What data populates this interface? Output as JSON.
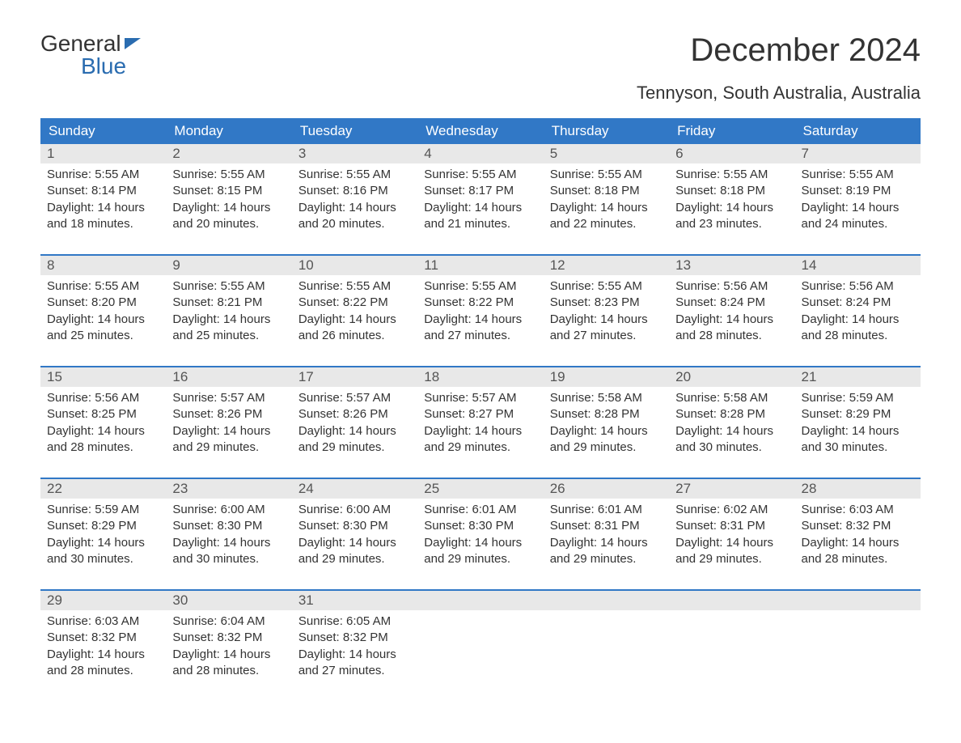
{
  "brand": {
    "line1": "General",
    "line2": "Blue"
  },
  "title": "December 2024",
  "subtitle": "Tennyson, South Australia, Australia",
  "colors": {
    "header_bg": "#3178c6",
    "header_text": "#ffffff",
    "daynum_bg": "#e8e8e8",
    "week_border": "#3178c6",
    "body_text": "#333333",
    "page_bg": "#ffffff"
  },
  "day_labels": [
    "Sunday",
    "Monday",
    "Tuesday",
    "Wednesday",
    "Thursday",
    "Friday",
    "Saturday"
  ],
  "label_prefixes": {
    "sunrise": "Sunrise: ",
    "sunset": "Sunset: ",
    "daylight1": "Daylight: ",
    "daylight2_prefix": "and ",
    "daylight2_suffix": " minutes."
  },
  "weeks": [
    [
      {
        "n": "1",
        "sunrise": "5:55 AM",
        "sunset": "8:14 PM",
        "dl_h": "14 hours",
        "dl_m": "18"
      },
      {
        "n": "2",
        "sunrise": "5:55 AM",
        "sunset": "8:15 PM",
        "dl_h": "14 hours",
        "dl_m": "20"
      },
      {
        "n": "3",
        "sunrise": "5:55 AM",
        "sunset": "8:16 PM",
        "dl_h": "14 hours",
        "dl_m": "20"
      },
      {
        "n": "4",
        "sunrise": "5:55 AM",
        "sunset": "8:17 PM",
        "dl_h": "14 hours",
        "dl_m": "21"
      },
      {
        "n": "5",
        "sunrise": "5:55 AM",
        "sunset": "8:18 PM",
        "dl_h": "14 hours",
        "dl_m": "22"
      },
      {
        "n": "6",
        "sunrise": "5:55 AM",
        "sunset": "8:18 PM",
        "dl_h": "14 hours",
        "dl_m": "23"
      },
      {
        "n": "7",
        "sunrise": "5:55 AM",
        "sunset": "8:19 PM",
        "dl_h": "14 hours",
        "dl_m": "24"
      }
    ],
    [
      {
        "n": "8",
        "sunrise": "5:55 AM",
        "sunset": "8:20 PM",
        "dl_h": "14 hours",
        "dl_m": "25"
      },
      {
        "n": "9",
        "sunrise": "5:55 AM",
        "sunset": "8:21 PM",
        "dl_h": "14 hours",
        "dl_m": "25"
      },
      {
        "n": "10",
        "sunrise": "5:55 AM",
        "sunset": "8:22 PM",
        "dl_h": "14 hours",
        "dl_m": "26"
      },
      {
        "n": "11",
        "sunrise": "5:55 AM",
        "sunset": "8:22 PM",
        "dl_h": "14 hours",
        "dl_m": "27"
      },
      {
        "n": "12",
        "sunrise": "5:55 AM",
        "sunset": "8:23 PM",
        "dl_h": "14 hours",
        "dl_m": "27"
      },
      {
        "n": "13",
        "sunrise": "5:56 AM",
        "sunset": "8:24 PM",
        "dl_h": "14 hours",
        "dl_m": "28"
      },
      {
        "n": "14",
        "sunrise": "5:56 AM",
        "sunset": "8:24 PM",
        "dl_h": "14 hours",
        "dl_m": "28"
      }
    ],
    [
      {
        "n": "15",
        "sunrise": "5:56 AM",
        "sunset": "8:25 PM",
        "dl_h": "14 hours",
        "dl_m": "28"
      },
      {
        "n": "16",
        "sunrise": "5:57 AM",
        "sunset": "8:26 PM",
        "dl_h": "14 hours",
        "dl_m": "29"
      },
      {
        "n": "17",
        "sunrise": "5:57 AM",
        "sunset": "8:26 PM",
        "dl_h": "14 hours",
        "dl_m": "29"
      },
      {
        "n": "18",
        "sunrise": "5:57 AM",
        "sunset": "8:27 PM",
        "dl_h": "14 hours",
        "dl_m": "29"
      },
      {
        "n": "19",
        "sunrise": "5:58 AM",
        "sunset": "8:28 PM",
        "dl_h": "14 hours",
        "dl_m": "29"
      },
      {
        "n": "20",
        "sunrise": "5:58 AM",
        "sunset": "8:28 PM",
        "dl_h": "14 hours",
        "dl_m": "30"
      },
      {
        "n": "21",
        "sunrise": "5:59 AM",
        "sunset": "8:29 PM",
        "dl_h": "14 hours",
        "dl_m": "30"
      }
    ],
    [
      {
        "n": "22",
        "sunrise": "5:59 AM",
        "sunset": "8:29 PM",
        "dl_h": "14 hours",
        "dl_m": "30"
      },
      {
        "n": "23",
        "sunrise": "6:00 AM",
        "sunset": "8:30 PM",
        "dl_h": "14 hours",
        "dl_m": "30"
      },
      {
        "n": "24",
        "sunrise": "6:00 AM",
        "sunset": "8:30 PM",
        "dl_h": "14 hours",
        "dl_m": "29"
      },
      {
        "n": "25",
        "sunrise": "6:01 AM",
        "sunset": "8:30 PM",
        "dl_h": "14 hours",
        "dl_m": "29"
      },
      {
        "n": "26",
        "sunrise": "6:01 AM",
        "sunset": "8:31 PM",
        "dl_h": "14 hours",
        "dl_m": "29"
      },
      {
        "n": "27",
        "sunrise": "6:02 AM",
        "sunset": "8:31 PM",
        "dl_h": "14 hours",
        "dl_m": "29"
      },
      {
        "n": "28",
        "sunrise": "6:03 AM",
        "sunset": "8:32 PM",
        "dl_h": "14 hours",
        "dl_m": "28"
      }
    ],
    [
      {
        "n": "29",
        "sunrise": "6:03 AM",
        "sunset": "8:32 PM",
        "dl_h": "14 hours",
        "dl_m": "28"
      },
      {
        "n": "30",
        "sunrise": "6:04 AM",
        "sunset": "8:32 PM",
        "dl_h": "14 hours",
        "dl_m": "28"
      },
      {
        "n": "31",
        "sunrise": "6:05 AM",
        "sunset": "8:32 PM",
        "dl_h": "14 hours",
        "dl_m": "27"
      },
      null,
      null,
      null,
      null
    ]
  ]
}
